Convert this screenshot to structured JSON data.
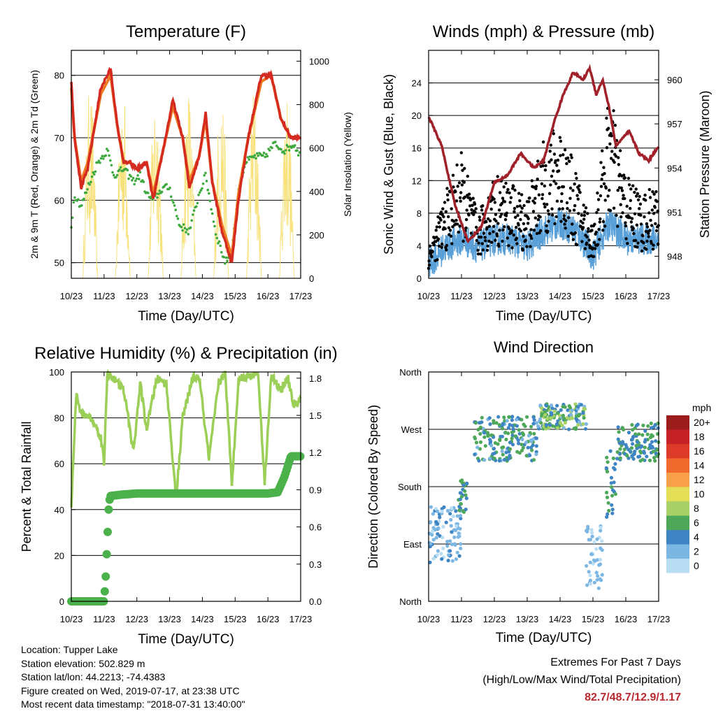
{
  "colors": {
    "red": "#d42a20",
    "orange": "#f07a22",
    "green": "#3ea93e",
    "yellow": "#f7e27e",
    "blue": "#5aa0d8",
    "black": "#000000",
    "maroon": "#a0212a",
    "rh_green": "#9ccf57",
    "precip_green": "#4bb14a",
    "accent_red": "#b8292f"
  },
  "x_ticks": [
    "10/23",
    "11/23",
    "12/23",
    "13/23",
    "14/23",
    "15/23",
    "16/23",
    "17/23"
  ],
  "chart_data": [
    {
      "id": "temperature",
      "type": "line",
      "title": "Temperature (F)",
      "xlabel": "Time (Day/UTC)",
      "ylabel": "2m & 9m T (Red, Orange) & 2m Td (Green)",
      "y2label": "Solar Insolation (Yellow)",
      "ylim": [
        47.5,
        84
      ],
      "yticks": [
        50,
        60,
        70,
        80
      ],
      "y2lim": [
        0,
        1050
      ],
      "y2ticks": [
        0,
        200,
        400,
        600,
        800,
        1000
      ],
      "series": [
        {
          "color": "red",
          "x": [
            0,
            0.1,
            0.3,
            0.5,
            0.9,
            1.2,
            1.4,
            1.6,
            1.8,
            2.0,
            2.3,
            2.5,
            2.8,
            3.1,
            3.4,
            3.6,
            3.9,
            4.1,
            4.3,
            4.6,
            4.9,
            5.1,
            5.4,
            5.8,
            6.1,
            6.4,
            6.7,
            7.0
          ],
          "values": [
            79,
            70,
            62,
            65,
            78,
            81,
            72,
            66,
            66,
            65,
            66,
            60,
            68,
            76,
            70,
            62,
            67,
            74,
            63,
            55,
            50,
            60,
            70,
            80,
            80,
            73,
            70,
            70
          ]
        },
        {
          "color": "orange",
          "x": [
            0,
            0.1,
            0.3,
            0.5,
            0.9,
            1.2,
            1.4,
            1.6,
            1.8,
            2.0,
            2.3,
            2.5,
            2.8,
            3.1,
            3.4,
            3.6,
            3.9,
            4.1,
            4.3,
            4.6,
            4.9,
            5.1,
            5.4,
            5.8,
            6.1,
            6.4,
            6.7,
            7.0
          ],
          "values": [
            78,
            70,
            63,
            66,
            77,
            80,
            72,
            66,
            66,
            65,
            66,
            61,
            68,
            75,
            70,
            63,
            67,
            73,
            63,
            56,
            51,
            61,
            70,
            79,
            80,
            73,
            70,
            70
          ]
        },
        {
          "color": "green",
          "x": [
            0,
            0.1,
            0.3,
            0.5,
            0.8,
            1.1,
            1.3,
            1.6,
            1.9,
            2.1,
            2.3,
            2.5,
            2.8,
            3.0,
            3.3,
            3.6,
            3.9,
            4.1,
            4.4,
            4.7,
            4.9,
            5.1,
            5.3,
            5.6,
            5.9,
            6.2,
            6.5,
            6.8,
            7.0
          ],
          "values": [
            56,
            61,
            59,
            62,
            66,
            68,
            64,
            65,
            63,
            64,
            61,
            60,
            62,
            62,
            56,
            55,
            61,
            64,
            55,
            50,
            52,
            61,
            66,
            67,
            67,
            69,
            68,
            69,
            67
          ]
        },
        {
          "color": "yellow",
          "axis": "y2",
          "x": [
            0.4,
            0.55,
            0.7,
            1.4,
            1.55,
            1.7,
            2.4,
            2.55,
            2.7,
            3.4,
            3.55,
            3.7,
            4.4,
            4.55,
            4.7,
            5.4,
            5.55,
            5.7,
            6.4,
            6.55,
            6.7
          ],
          "values": [
            0,
            900,
            0,
            0,
            950,
            0,
            0,
            850,
            0,
            0,
            920,
            0,
            0,
            1000,
            0,
            0,
            900,
            0,
            0,
            800,
            0
          ]
        }
      ]
    },
    {
      "id": "winds",
      "type": "scatter",
      "title": "Winds (mph) & Pressure (mb)",
      "xlabel": "Time (Day/UTC)",
      "ylabel": "Sonic Wind & Gust (Blue, Black)",
      "y2label": "Station Pressure (Maroon)",
      "ylim": [
        0,
        28
      ],
      "yticks": [
        0,
        4,
        8,
        12,
        16,
        20,
        24
      ],
      "y2lim": [
        946.5,
        962
      ],
      "y2ticks": [
        948,
        951,
        954,
        957,
        960
      ],
      "series": [
        {
          "color": "blue",
          "x": [
            0,
            0.5,
            1.0,
            1.5,
            2.0,
            2.5,
            3.0,
            3.5,
            4.0,
            4.5,
            5.0,
            5.5,
            6.0,
            6.5,
            7.0
          ],
          "values": [
            1,
            3,
            4,
            3,
            4,
            4,
            3,
            5,
            6,
            5,
            2,
            6,
            4,
            4,
            4
          ]
        },
        {
          "color": "black",
          "x": [
            0,
            0.5,
            1.0,
            1.5,
            2.0,
            2.5,
            3.0,
            3.5,
            4.0,
            4.5,
            5.0,
            5.5,
            6.0,
            6.5,
            7.0
          ],
          "values": [
            3,
            8,
            12,
            6,
            10,
            9,
            8,
            13,
            15,
            10,
            5,
            18,
            10,
            8,
            9
          ]
        },
        {
          "color": "maroon",
          "axis": "y2",
          "x": [
            0,
            0.4,
            0.8,
            1.2,
            1.6,
            2.0,
            2.4,
            2.8,
            3.2,
            3.5,
            3.8,
            4.1,
            4.4,
            4.7,
            4.9,
            5.1,
            5.3,
            5.5,
            5.7,
            5.9,
            6.1,
            6.4,
            6.7,
            7.0
          ],
          "values": [
            957.5,
            955.5,
            951.5,
            949,
            950,
            953,
            953.5,
            955,
            954,
            954.5,
            957,
            959,
            960.5,
            960,
            960.8,
            959,
            960,
            958,
            955.5,
            956,
            956.5,
            955,
            954.5,
            955.5
          ]
        }
      ]
    },
    {
      "id": "rh_precip",
      "type": "line",
      "title": "Relative Humidity (%) & Precipitation (in)",
      "xlabel": "Time (Day/UTC)",
      "ylabel": "Percent & Total Rainfall",
      "ylim": [
        0,
        100
      ],
      "yticks": [
        0,
        20,
        40,
        60,
        80,
        100
      ],
      "y2lim": [
        0,
        1.85
      ],
      "y2ticks": [
        "0.0",
        "0.3",
        "0.6",
        "0.9",
        "1.2",
        "1.5",
        "1.8"
      ],
      "series": [
        {
          "color": "rh_green",
          "x": [
            0,
            0.15,
            0.3,
            0.6,
            0.9,
            1.0,
            1.1,
            1.3,
            1.6,
            1.9,
            2.1,
            2.3,
            2.6,
            2.9,
            3.2,
            3.4,
            3.7,
            3.9,
            4.2,
            4.5,
            4.7,
            4.9,
            5.1,
            5.4,
            5.7,
            5.9,
            6.1,
            6.4,
            6.6,
            6.8,
            7.0
          ],
          "values": [
            42,
            90,
            82,
            80,
            72,
            60,
            100,
            97,
            92,
            65,
            95,
            75,
            97,
            95,
            45,
            80,
            97,
            98,
            62,
            95,
            100,
            50,
            97,
            98,
            100,
            52,
            98,
            92,
            98,
            85,
            88
          ]
        },
        {
          "color": "precip_green",
          "axis": "y2",
          "x": [
            0,
            1.0,
            1.05,
            1.1,
            1.15,
            1.2,
            1.5,
            2.0,
            3.0,
            4.0,
            5.0,
            6.0,
            6.3,
            6.5,
            6.7,
            7.0
          ],
          "values": [
            0,
            0,
            0.2,
            0.5,
            0.8,
            0.85,
            0.86,
            0.87,
            0.87,
            0.87,
            0.87,
            0.87,
            0.88,
            1.0,
            1.17,
            1.17
          ]
        }
      ]
    },
    {
      "id": "wind_direction",
      "type": "scatter",
      "title": "Wind Direction",
      "xlabel": "Time (Day/UTC)",
      "ylabel": "Direction (Colored By Speed)",
      "ylim": [
        0,
        360
      ],
      "y_tick_values": [
        0,
        90,
        180,
        270,
        360
      ],
      "y_tick_labels": [
        "North",
        "East",
        "South",
        "West",
        "North"
      ],
      "colorbar": {
        "title": "mph",
        "labels": [
          "20+",
          "18",
          "16",
          "14",
          "12",
          "10",
          "8",
          "6",
          "4",
          "2",
          "0"
        ],
        "colors": [
          "#9c1b1b",
          "#c62126",
          "#dd3a2a",
          "#f06a2e",
          "#f9a14a",
          "#e4df56",
          "#a8d267",
          "#4fa85a",
          "#3f84c3",
          "#7cb6e3",
          "#b9def4"
        ]
      },
      "bands": [
        {
          "x0": 0.0,
          "x1": 1.0,
          "y0": 60,
          "y1": 150,
          "speed": [
            0,
            4
          ]
        },
        {
          "x0": 0.9,
          "x1": 1.2,
          "y0": 140,
          "y1": 190,
          "speed": [
            4,
            6
          ]
        },
        {
          "x0": 1.4,
          "x1": 3.4,
          "y0": 220,
          "y1": 290,
          "speed": [
            2,
            7
          ]
        },
        {
          "x0": 3.4,
          "x1": 4.8,
          "y0": 270,
          "y1": 310,
          "speed": [
            2,
            9
          ]
        },
        {
          "x0": 4.8,
          "x1": 5.3,
          "y0": 20,
          "y1": 120,
          "speed": [
            0,
            3
          ]
        },
        {
          "x0": 5.4,
          "x1": 5.7,
          "y0": 130,
          "y1": 240,
          "speed": [
            3,
            6
          ]
        },
        {
          "x0": 5.7,
          "x1": 7.0,
          "y0": 220,
          "y1": 280,
          "speed": [
            3,
            7
          ]
        }
      ]
    }
  ],
  "footer": {
    "location": "Location: Tupper Lake",
    "elevation": "Station elevation: 502.829 m",
    "latlon": "Station lat/lon: 44.2213; -74.4383",
    "created": "Figure created on Wed, 2019-07-17, at 23:38 UTC",
    "recent": "Most recent data timestamp: \"2018-07-31 13:40:00\""
  },
  "extremes": {
    "title": "Extremes For Past 7 Days",
    "subtitle": "(High/Low/Max Wind/Total Precipitation)",
    "values": "82.7/48.7/12.9/1.17"
  }
}
